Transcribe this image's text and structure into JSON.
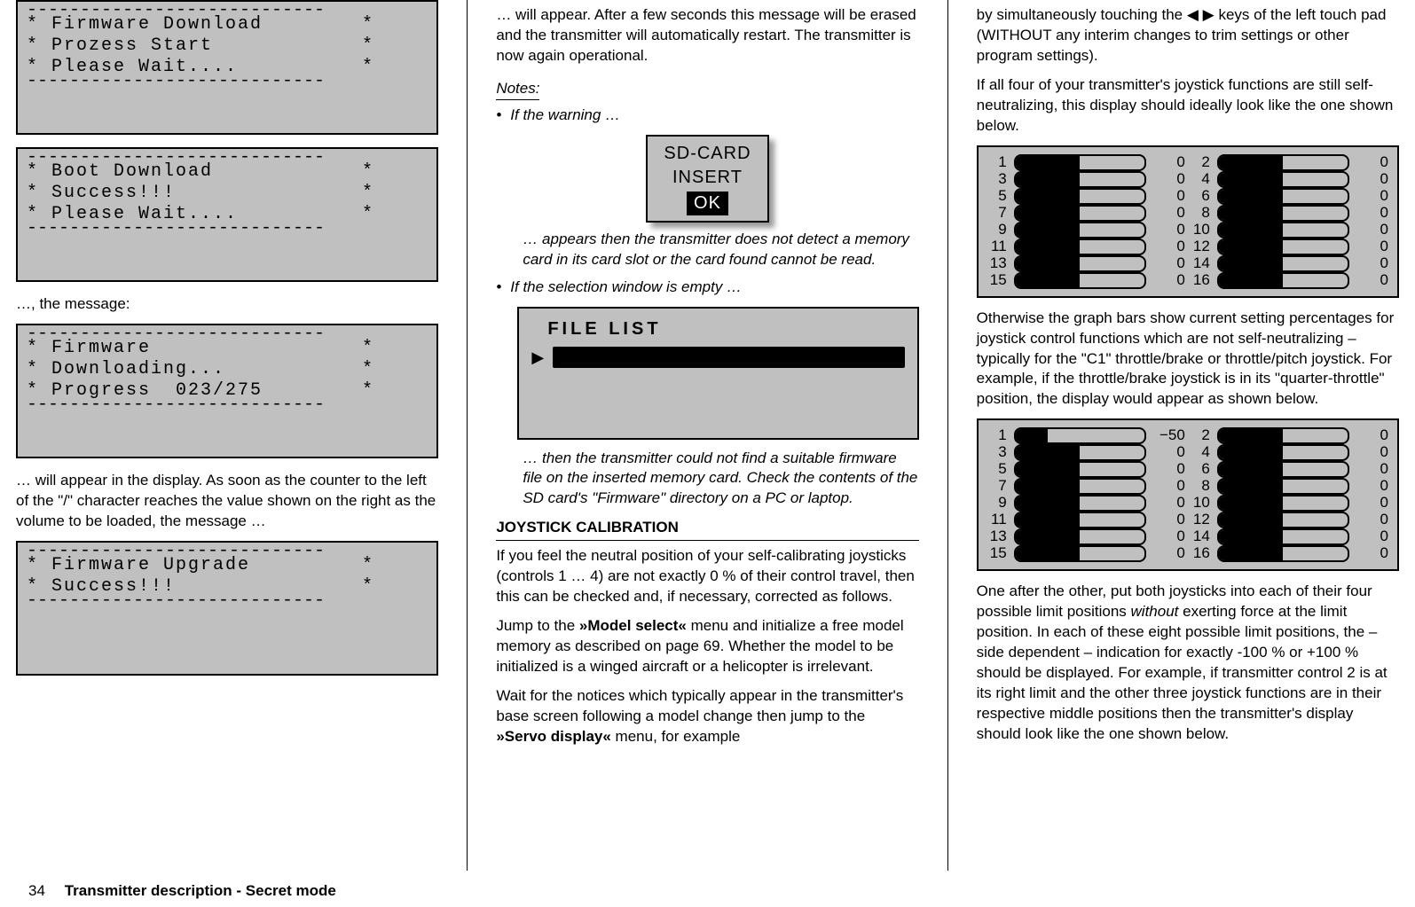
{
  "col1": {
    "lcd1": [
      "Firmware Download",
      "Prozess Start",
      "Please Wait...."
    ],
    "lcd2": [
      "Boot Download",
      "Success!!!",
      "Please Wait...."
    ],
    "inter1": "…, the message:",
    "lcd3": [
      "Firmware",
      "Downloading...",
      "Progress  023/275"
    ],
    "para1": "… will appear in the display. As soon as the counter to the left of the \"/\" character reaches the value shown on the right as the volume to be loaded, the message …",
    "lcd4": [
      "Firmware Upgrade",
      "Success!!!"
    ]
  },
  "col2": {
    "top": "… will appear. After a few seconds this message will be erased and the transmitter will automatically restart. The transmitter is now again operational.",
    "notes_label": "Notes:",
    "bullet1": "If the warning …",
    "popup": {
      "l1": "SD-CARD",
      "l2": "INSERT",
      "ok": "OK"
    },
    "note1_body": "… appears then the transmitter does not detect a memory card in its card slot or the card found cannot be read.",
    "bullet2": "If the selection window is empty …",
    "filelist_hd": "FILE LIST",
    "note2_body": "… then the transmitter could not find a suitable firmware file on the inserted memory card. Check the contents of the SD card's \"Firmware\" directory on a PC or laptop.",
    "joystick_hd": "JOYSTICK CALIBRATION",
    "joy_p1a": "If you feel the neutral position of your self-calibrating joysticks (controls 1 … 4) are not exactly 0 % of their control travel, then this can be checked and, if necessary, corrected as follows.",
    "joy_p1b_pre": "Jump to the ",
    "joy_menu1": "Model select",
    "joy_p1b_post": " menu and initialize a free model memory as described on page 69. Whether the model to be initialized is a winged aircraft or a helicopter is irrelevant.",
    "joy_p2_pre": "Wait for the notices which typically appear in the transmitter's base screen following a model change then jump to the ",
    "joy_menu2": "Servo display",
    "joy_p2_post": " menu, for example"
  },
  "col3": {
    "top": "by simultaneously touching the ◀ ▶ keys of the left touch pad (WITHOUT any interim changes to trim settings or other program settings).",
    "p2": "If all four of your transmitter's joystick functions are still self-neutralizing, this display should ideally look like the one shown below.",
    "servo1_values": [
      0,
      0,
      0,
      0,
      0,
      0,
      0,
      0,
      0,
      0,
      0,
      0,
      0,
      0,
      0,
      0
    ],
    "mid": "Otherwise the graph bars show current setting percentages for joystick control functions which are not self-neutralizing – typically for the \"C1\" throttle/brake or throttle/pitch joystick. For example, if the throttle/brake joystick is in its \"quarter-throttle\" position, the display would appear as shown below.",
    "servo2_values": [
      -50,
      0,
      0,
      0,
      0,
      0,
      0,
      0,
      0,
      0,
      0,
      0,
      0,
      0,
      0,
      0
    ],
    "p_after_pre": "One after the other, put both joysticks into each of their four possible limit positions ",
    "p_after_em": "without",
    "p_after_post": " exerting force at the limit position. In each of these eight possible limit positions, the – side dependent – indication for exactly -100 % or +100 % should be displayed. For example, if transmitter control 2 is at its right limit and the other three joystick functions are in their respective middle positions then the transmitter's display should look like the one shown below."
  },
  "footer": {
    "page": "34",
    "title": "Transmitter description - Secret mode"
  },
  "style": {
    "lcd_bg": "#c0c0c0",
    "dash": "----------------------------"
  }
}
